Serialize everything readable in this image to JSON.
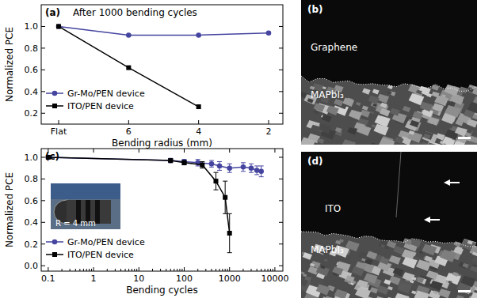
{
  "chart_data": [
    {
      "type": "line",
      "panel": "(a)",
      "annotations": [
        "After 1000 bending cycles"
      ],
      "x_label": "Bending radius (mm)",
      "y_label": "Normalized PCE",
      "categories": [
        "Flat",
        "6",
        "4",
        "2"
      ],
      "ylim": [
        0.1,
        1.2
      ],
      "yticks": [
        0.2,
        0.4,
        0.6,
        0.8,
        {
          "value": 1,
          "label": "1.0"
        }
      ],
      "legend": "lower left",
      "series": [
        {
          "name": "Gr-Mo/PEN device",
          "color": "#4545a0",
          "marker": "circle",
          "line_style": "solid",
          "values": [
            1.0,
            0.92,
            0.92,
            0.94
          ]
        },
        {
          "name": "ITO/PEN device",
          "color": "#000000",
          "marker": "square",
          "line_style": "solid",
          "values": [
            1.0,
            0.62,
            0.26,
            null
          ]
        }
      ]
    },
    {
      "type": "line",
      "panel": "(c)",
      "annotations": [
        "R = 4 mm"
      ],
      "x_label": "Bending cycles",
      "y_label": "Normalized PCE",
      "log": "x",
      "xlim": [
        0.07,
        15000
      ],
      "xticks": [
        0.1,
        1,
        10,
        100,
        1000,
        10000
      ],
      "ylim": [
        -0.05,
        1.08
      ],
      "yticks": [
        {
          "value": 0,
          "label": "0.0"
        },
        0.2,
        0.4,
        0.6,
        0.8,
        {
          "value": 1,
          "label": "1.0"
        }
      ],
      "legend": "lower left",
      "series": [
        {
          "name": "Gr-Mo/PEN device",
          "color": "#4545a0",
          "marker": "circle",
          "line_style": "solid",
          "x": [
            0.1,
            50,
            100,
            200,
            400,
            600,
            1000,
            2000,
            3000,
            4000,
            5000
          ],
          "values": [
            1.0,
            0.97,
            0.96,
            0.95,
            0.94,
            0.92,
            0.9,
            0.91,
            0.9,
            0.88,
            0.87
          ],
          "errors": [
            0,
            0.02,
            0.02,
            0.03,
            0.03,
            0.04,
            0.04,
            0.04,
            0.04,
            0.04,
            0.05
          ]
        },
        {
          "name": "ITO/PEN device",
          "color": "#000000",
          "marker": "square",
          "line_style": "solid",
          "x": [
            0.1,
            50,
            100,
            250,
            500,
            800,
            1000
          ],
          "values": [
            1.0,
            0.97,
            0.95,
            0.93,
            0.78,
            0.63,
            0.3
          ],
          "errors": [
            0,
            0.01,
            0.02,
            0.03,
            0.08,
            0.15,
            0.18
          ]
        }
      ]
    }
  ],
  "images": [
    {
      "panel": "(b)",
      "labels": [
        "Graphene",
        "MAPbI₃"
      ]
    },
    {
      "panel": "(d)",
      "labels": [
        "ITO",
        "MAPbI₃"
      ]
    }
  ]
}
